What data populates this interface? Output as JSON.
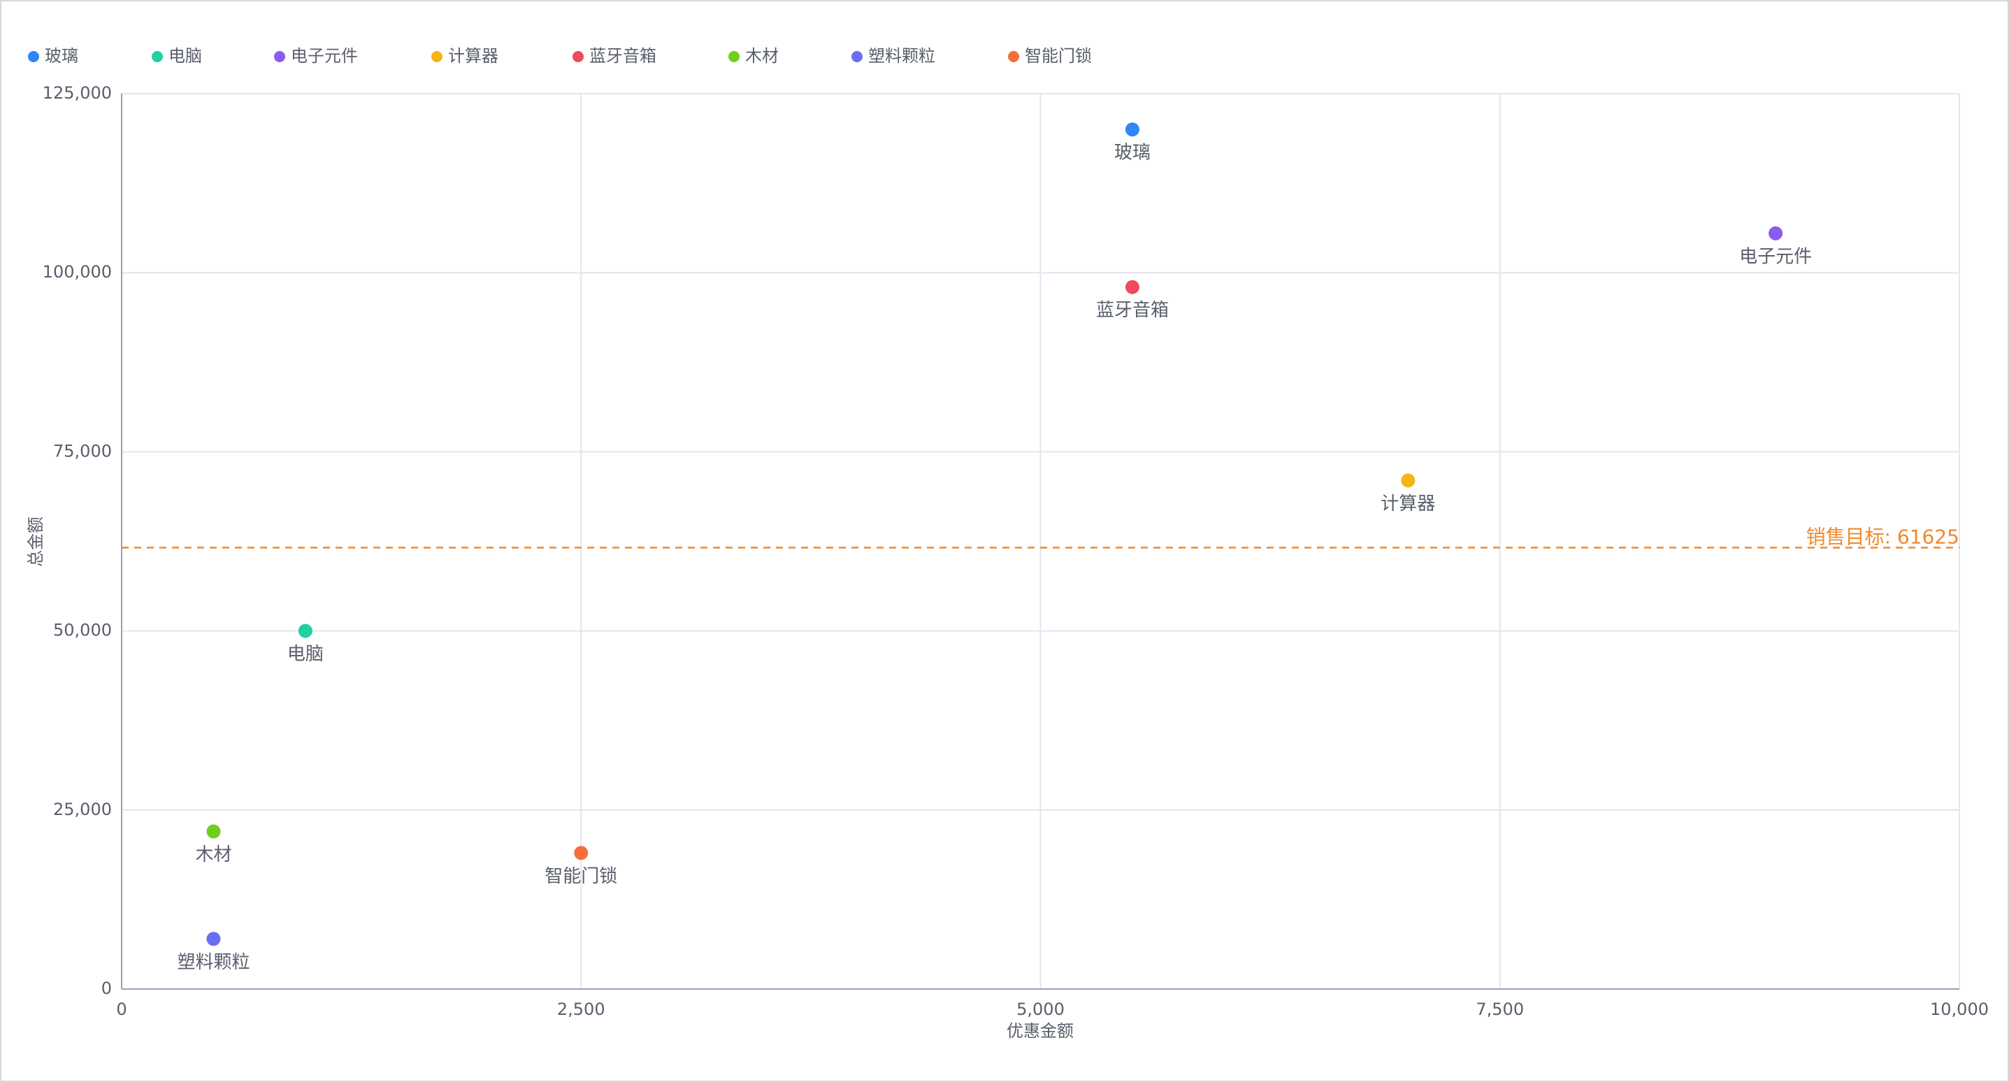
{
  "chart_data": {
    "type": "scatter",
    "x_label": "优惠金额",
    "y_label": "总金额",
    "xlim": [
      0,
      10000
    ],
    "xticks": [
      0,
      {
        "value": 2500,
        "label": "2,500"
      },
      {
        "value": 5000,
        "label": "5,000"
      },
      {
        "value": 7500,
        "label": "7,500"
      },
      {
        "value": 10000,
        "label": "10,000"
      }
    ],
    "ylim": [
      0,
      125000
    ],
    "yticks": [
      0,
      {
        "value": 25000,
        "label": "25,000"
      },
      {
        "value": 50000,
        "label": "50,000"
      },
      {
        "value": 75000,
        "label": "75,000"
      },
      {
        "value": 100000,
        "label": "100,000"
      },
      {
        "value": 125000,
        "label": "125,000"
      }
    ],
    "grid": true,
    "legend": "top-left",
    "reference_line": {
      "value": 61625,
      "label": "销售目标: 61625",
      "color": "#f0892e"
    },
    "series": [
      {
        "name": "玻璃",
        "color": "#2f86f6",
        "x": [
          5500
        ],
        "values": [
          120000
        ]
      },
      {
        "name": "电脑",
        "color": "#1fd0a0",
        "x": [
          1000
        ],
        "values": [
          50000
        ]
      },
      {
        "name": "电子元件",
        "color": "#8a5cf0",
        "x": [
          9000
        ],
        "values": [
          105500
        ]
      },
      {
        "name": "计算器",
        "color": "#f5b514",
        "x": [
          7000
        ],
        "values": [
          71000
        ]
      },
      {
        "name": "蓝牙音箱",
        "color": "#f04a5d",
        "x": [
          5500
        ],
        "values": [
          98000
        ]
      },
      {
        "name": "木材",
        "color": "#6fcf1a",
        "x": [
          500
        ],
        "values": [
          22000
        ]
      },
      {
        "name": "塑料颗粒",
        "color": "#6a6ff0",
        "x": [
          500
        ],
        "values": [
          7000
        ]
      },
      {
        "name": "智能门锁",
        "color": "#f56e3c",
        "x": [
          2500
        ],
        "values": [
          19000
        ]
      }
    ]
  }
}
